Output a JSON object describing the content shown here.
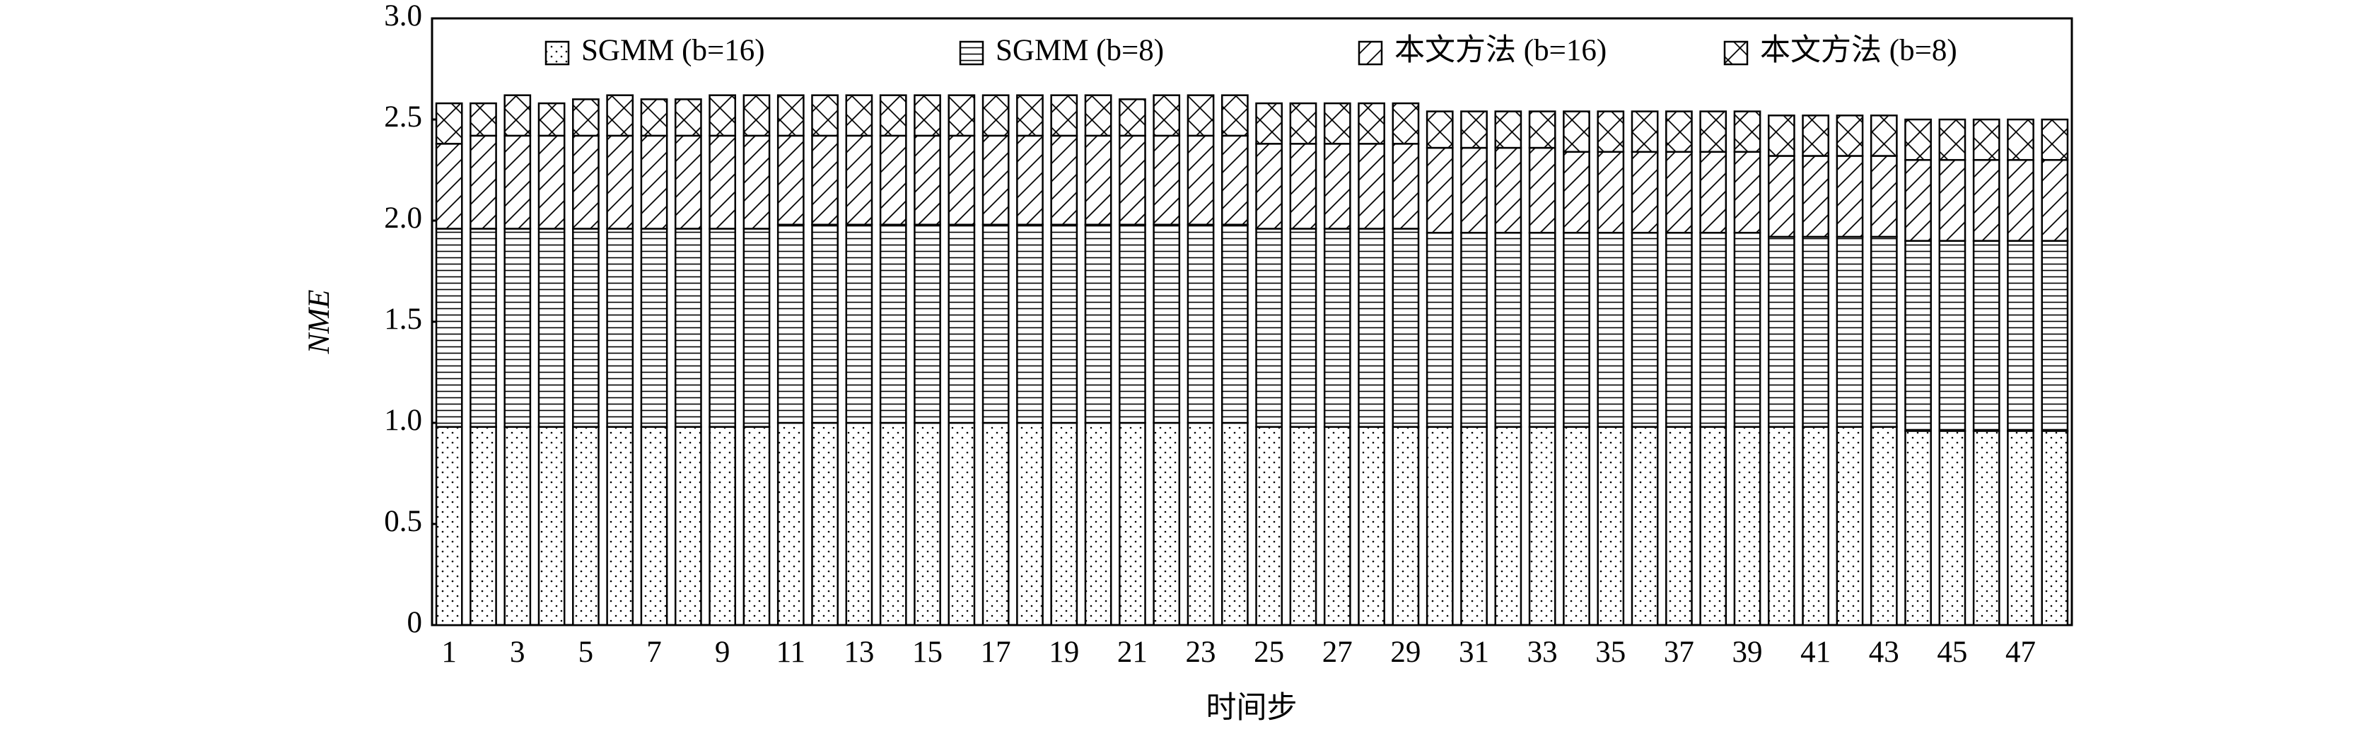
{
  "chart_data": {
    "type": "stacked_bar",
    "ylabel": "NME",
    "xlabel": "时间步",
    "categories": [
      1,
      null,
      3,
      null,
      5,
      null,
      7,
      null,
      9,
      null,
      11,
      null,
      13,
      null,
      15,
      null,
      17,
      null,
      19,
      null,
      21,
      null,
      23,
      null,
      25,
      null,
      27,
      null,
      29,
      null,
      31,
      null,
      33,
      null,
      35,
      null,
      37,
      null,
      39,
      null,
      41,
      null,
      43,
      null,
      45,
      null,
      47,
      null
    ],
    "series": [
      {
        "name": "SGMM (b=16)",
        "color": "#000000",
        "hatch": "dots",
        "values": [
          0.98,
          0.98,
          0.98,
          0.98,
          0.98,
          0.98,
          0.98,
          0.98,
          0.98,
          0.98,
          1.0,
          1.0,
          1.0,
          1.0,
          1.0,
          1.0,
          1.0,
          1.0,
          1.0,
          1.0,
          1.0,
          1.0,
          1.0,
          1.0,
          0.98,
          0.98,
          0.98,
          0.98,
          0.98,
          0.98,
          0.98,
          0.98,
          0.98,
          0.98,
          0.98,
          0.98,
          0.98,
          0.98,
          0.98,
          0.98,
          0.98,
          0.98,
          0.98,
          0.96,
          0.96,
          0.96,
          0.96,
          0.96
        ]
      },
      {
        "name": "SGMM (b=8)",
        "color": "#000000",
        "hatch": "horizontal",
        "values": [
          0.98,
          0.98,
          0.98,
          0.98,
          0.98,
          0.98,
          0.98,
          0.98,
          0.98,
          0.98,
          0.98,
          0.98,
          0.98,
          0.98,
          0.98,
          0.98,
          0.98,
          0.98,
          0.98,
          0.98,
          0.98,
          0.98,
          0.98,
          0.98,
          0.98,
          0.98,
          0.98,
          0.98,
          0.98,
          0.96,
          0.96,
          0.96,
          0.96,
          0.96,
          0.96,
          0.96,
          0.96,
          0.96,
          0.96,
          0.94,
          0.94,
          0.94,
          0.94,
          0.94,
          0.94,
          0.94,
          0.94,
          0.94
        ]
      },
      {
        "name": "本文方法 (b=16)",
        "color": "#000000",
        "hatch": "diagonal",
        "values": [
          0.42,
          0.46,
          0.46,
          0.46,
          0.46,
          0.46,
          0.46,
          0.46,
          0.46,
          0.46,
          0.44,
          0.44,
          0.44,
          0.44,
          0.44,
          0.44,
          0.44,
          0.44,
          0.44,
          0.44,
          0.44,
          0.44,
          0.44,
          0.44,
          0.42,
          0.42,
          0.42,
          0.42,
          0.42,
          0.42,
          0.42,
          0.42,
          0.42,
          0.4,
          0.4,
          0.4,
          0.4,
          0.4,
          0.4,
          0.4,
          0.4,
          0.4,
          0.4,
          0.4,
          0.4,
          0.4,
          0.4,
          0.4
        ]
      },
      {
        "name": "本文方法 (b=8)",
        "color": "#000000",
        "hatch": "cross",
        "values": [
          0.2,
          0.16,
          0.2,
          0.16,
          0.18,
          0.2,
          0.18,
          0.18,
          0.2,
          0.2,
          0.2,
          0.2,
          0.2,
          0.2,
          0.2,
          0.2,
          0.2,
          0.2,
          0.2,
          0.2,
          0.18,
          0.2,
          0.2,
          0.2,
          0.2,
          0.2,
          0.2,
          0.2,
          0.2,
          0.18,
          0.18,
          0.18,
          0.18,
          0.2,
          0.2,
          0.2,
          0.2,
          0.2,
          0.2,
          0.2,
          0.2,
          0.2,
          0.2,
          0.2,
          0.2,
          0.2,
          0.2,
          0.2
        ]
      }
    ],
    "ylim": [
      0,
      3
    ],
    "yticks": [
      0,
      0.5,
      {
        "value": 1,
        "label": "1.0"
      },
      1.5,
      {
        "value": 2,
        "label": "2.0"
      },
      2.5,
      {
        "value": 3,
        "label": "3.0"
      }
    ],
    "grid": false,
    "legend": "top"
  }
}
